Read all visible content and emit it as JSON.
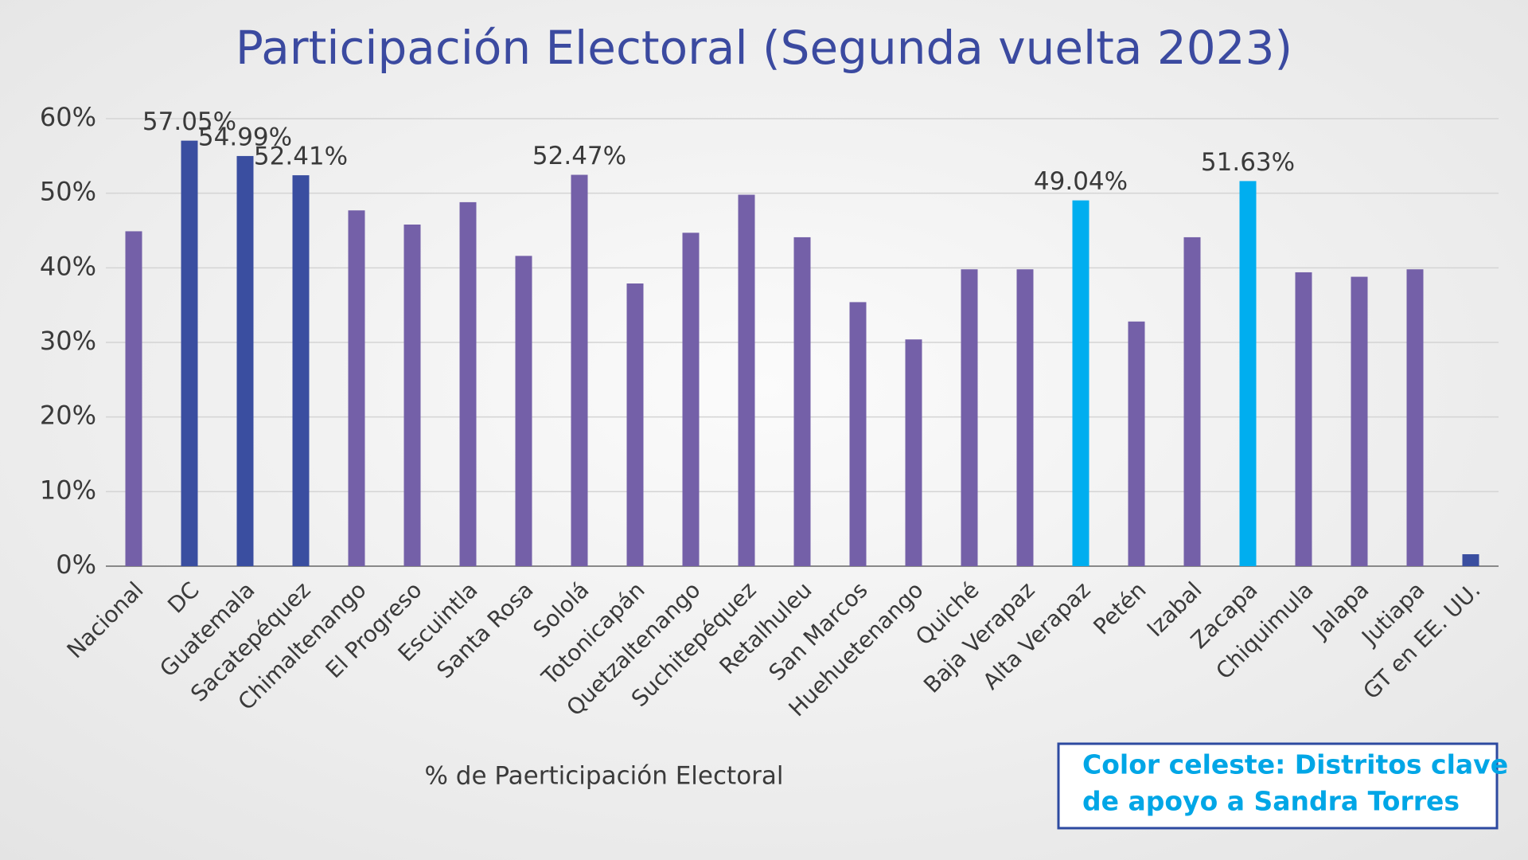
{
  "chart_data": {
    "type": "bar",
    "title": "Participación Electoral (Segunda vuelta 2023)",
    "categories": [
      "Nacional",
      "DC",
      "Guatemala",
      "Sacatepéquez",
      "Chimaltenango",
      "El Progreso",
      "Escuintla",
      "Santa Rosa",
      "Sololá",
      "Totonicapán",
      "Quetzaltenango",
      "Suchitepéquez",
      "Retalhuleu",
      "San Marcos",
      "Huehuetenango",
      "Quiché",
      "Baja Verapaz",
      "Alta Verapaz",
      "Petén",
      "Izabal",
      "Zacapa",
      "Chiquimula",
      "Jalapa",
      "Jutiapa",
      "GT en EE. UU."
    ],
    "values": [
      44.9,
      57.05,
      54.99,
      52.41,
      47.7,
      45.8,
      48.8,
      41.6,
      52.47,
      37.9,
      44.7,
      49.8,
      44.1,
      35.4,
      30.4,
      39.8,
      39.8,
      49.04,
      32.8,
      44.1,
      51.63,
      39.4,
      38.8,
      39.8,
      1.6
    ],
    "value_labels": [
      null,
      "57.05%",
      "54.99%",
      "52.41%",
      null,
      null,
      null,
      null,
      "52.47%",
      null,
      null,
      null,
      null,
      null,
      null,
      null,
      null,
      "49.04%",
      null,
      null,
      "51.63%",
      null,
      null,
      null,
      null
    ],
    "colors": [
      "#7460a8",
      "#3a4ea0",
      "#3a4ea0",
      "#3a4ea0",
      "#7460a8",
      "#7460a8",
      "#7460a8",
      "#7460a8",
      "#7460a8",
      "#7460a8",
      "#7460a8",
      "#7460a8",
      "#7460a8",
      "#7460a8",
      "#7460a8",
      "#7460a8",
      "#7460a8",
      "#00aeef",
      "#7460a8",
      "#7460a8",
      "#00aeef",
      "#7460a8",
      "#7460a8",
      "#7460a8",
      "#3a4ea0"
    ],
    "xlabel": "% de Paerticipación Electoral",
    "ylim": [
      0,
      60
    ],
    "yticks": [
      {
        "value": 0,
        "label": "0%"
      },
      {
        "value": 10,
        "label": "10%"
      },
      {
        "value": 20,
        "label": "20%"
      },
      {
        "value": 30,
        "label": "30%"
      },
      {
        "value": 40,
        "label": "40%"
      },
      {
        "value": 50,
        "label": "50%"
      },
      {
        "value": 60,
        "label": "60%"
      }
    ],
    "grid": true,
    "annotation": [
      "Color celeste: Distritos clave",
      "de apoyo a Sandra Torres"
    ]
  }
}
